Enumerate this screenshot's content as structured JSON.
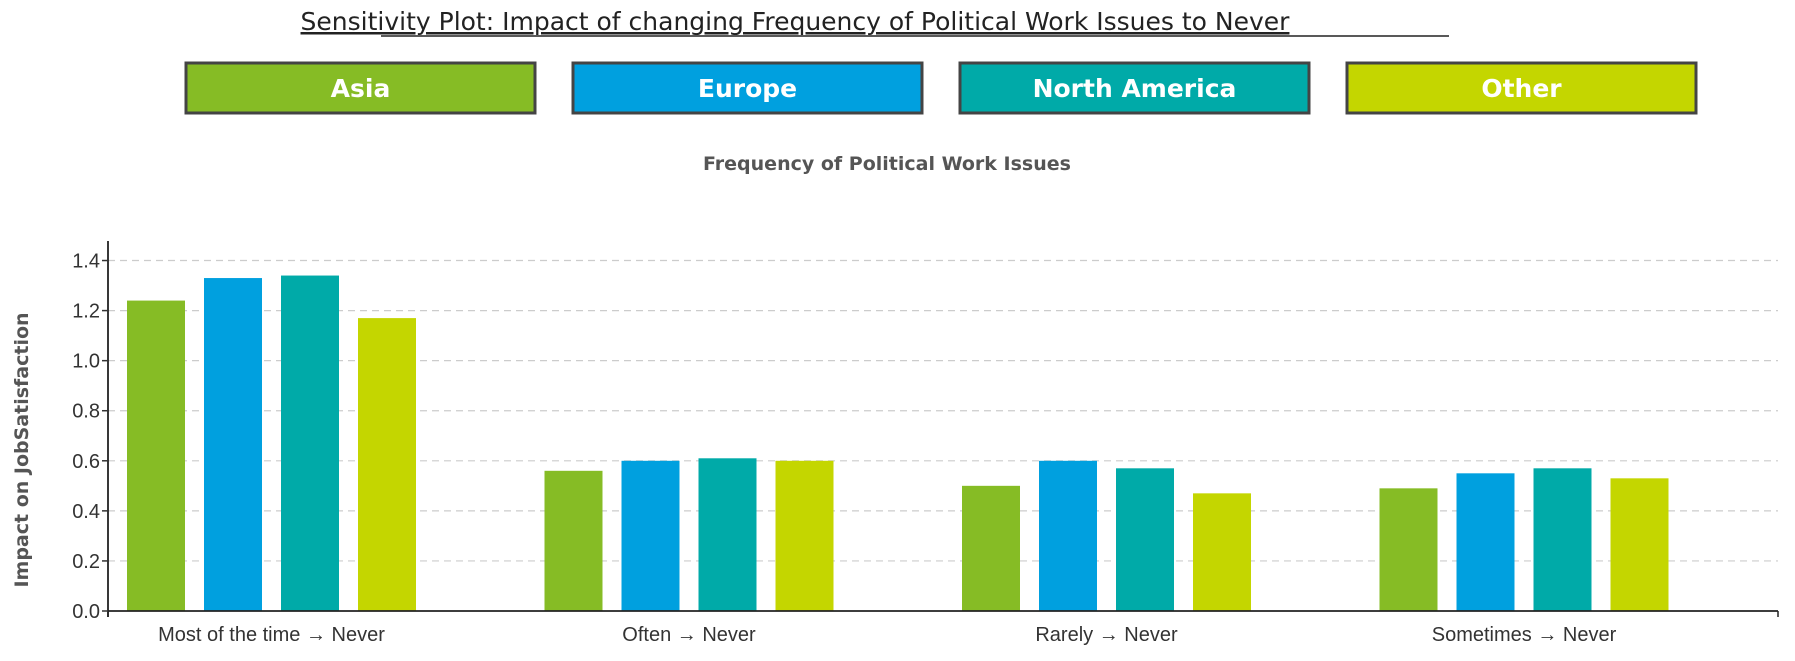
{
  "chart_data": {
    "type": "bar",
    "title": "Sensitivity Plot: Impact of changing Frequency of Political Work Issues to Never",
    "subtitle": "Frequency of Political Work Issues",
    "xlabel": "",
    "ylabel": "Impact on JobSatisfaction",
    "categories": [
      "Most of the time → Never",
      "Often → Never",
      "Rarely → Never",
      "Sometimes → Never"
    ],
    "series": [
      {
        "name": "Asia",
        "color": "#86bc25",
        "values": [
          1.24,
          0.56,
          0.5,
          0.49
        ]
      },
      {
        "name": "Europe",
        "color": "#00a0df",
        "values": [
          1.33,
          0.6,
          0.6,
          0.55
        ]
      },
      {
        "name": "North America",
        "color": "#00aaa8",
        "values": [
          1.34,
          0.61,
          0.57,
          0.57
        ]
      },
      {
        "name": "Other",
        "color": "#c4d600",
        "values": [
          1.17,
          0.6,
          0.47,
          0.53
        ]
      }
    ],
    "ylim": [
      0,
      1.47
    ],
    "yticks": [
      "0.0",
      "0.2",
      "0.4",
      "0.6",
      "0.8",
      "1.0",
      "1.2",
      "1.4"
    ],
    "grid": true,
    "legend_position": "top"
  }
}
